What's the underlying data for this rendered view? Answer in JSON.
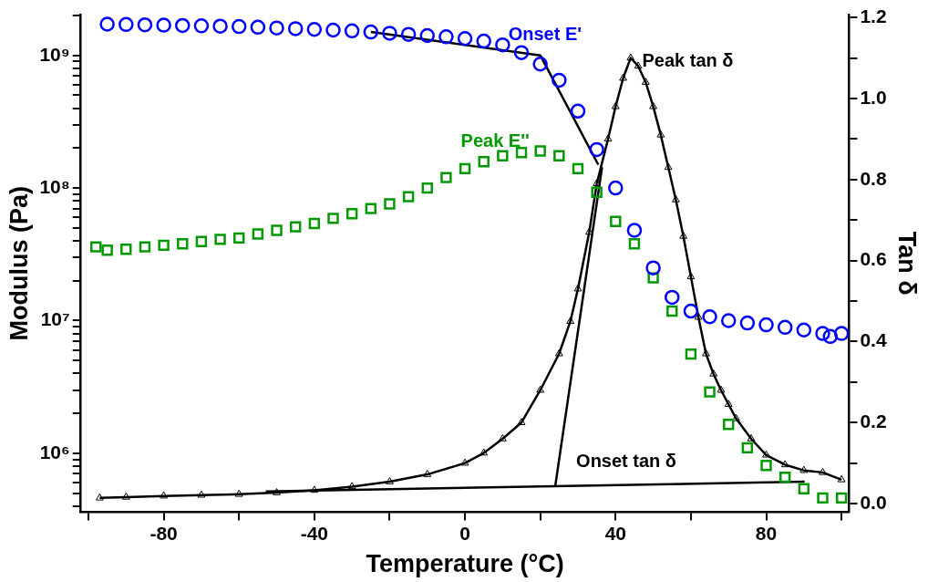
{
  "chart_data": {
    "type": "scatter",
    "xlabel": "Temperature (°C)",
    "ylabel": "Modulus (Pa)",
    "y2label": "Tan δ",
    "log": "y",
    "grid": false,
    "legend": false,
    "xlim": [
      -102,
      102
    ],
    "xticks": [
      {
        "value": -100,
        "label": null
      },
      -80,
      {
        "value": -60,
        "label": null
      },
      -40,
      {
        "value": -20,
        "label": null
      },
      0,
      {
        "value": 20,
        "label": null
      },
      40,
      {
        "value": 60,
        "label": null
      },
      80,
      {
        "value": 100,
        "label": null
      }
    ],
    "ylim": [
      360000,
      2030000000
    ],
    "yticks": [
      {
        "value": 400000,
        "label": null
      },
      {
        "value": 500000,
        "label": null
      },
      {
        "value": 600000,
        "label": null
      },
      {
        "value": 700000,
        "label": null
      },
      {
        "value": 800000,
        "label": null
      },
      {
        "value": 900000,
        "label": null
      },
      {
        "value": 1000000,
        "label": "10⁶"
      },
      {
        "value": 2000000,
        "label": null
      },
      {
        "value": 3000000,
        "label": null
      },
      {
        "value": 4000000,
        "label": null
      },
      {
        "value": 5000000,
        "label": null
      },
      {
        "value": 6000000,
        "label": null
      },
      {
        "value": 7000000,
        "label": null
      },
      {
        "value": 8000000,
        "label": null
      },
      {
        "value": 9000000,
        "label": null
      },
      {
        "value": 10000000,
        "label": "10⁷"
      },
      {
        "value": 20000000,
        "label": null
      },
      {
        "value": 30000000,
        "label": null
      },
      {
        "value": 40000000,
        "label": null
      },
      {
        "value": 50000000,
        "label": null
      },
      {
        "value": 60000000,
        "label": null
      },
      {
        "value": 70000000,
        "label": null
      },
      {
        "value": 80000000,
        "label": null
      },
      {
        "value": 90000000,
        "label": null
      },
      {
        "value": 100000000,
        "label": "10⁸"
      },
      {
        "value": 200000000,
        "label": null
      },
      {
        "value": 300000000,
        "label": null
      },
      {
        "value": 400000000,
        "label": null
      },
      {
        "value": 500000000,
        "label": null
      },
      {
        "value": 600000000,
        "label": null
      },
      {
        "value": 700000000,
        "label": null
      },
      {
        "value": 800000000,
        "label": null
      },
      {
        "value": 900000000,
        "label": null
      },
      {
        "value": 1000000000,
        "label": "10⁹"
      },
      {
        "value": 2000000000,
        "label": null
      }
    ],
    "y2lim": [
      -0.021,
      1.207
    ],
    "y2ticks": [
      "0.0",
      {
        "value": 0.1,
        "label": null
      },
      {
        "value": 0.2,
        "label": "0.2"
      },
      {
        "value": 0.3,
        "label": null
      },
      {
        "value": 0.4,
        "label": "0.4"
      },
      {
        "value": 0.5,
        "label": null
      },
      {
        "value": 0.6,
        "label": "0.6"
      },
      {
        "value": 0.7,
        "label": null
      },
      {
        "value": 0.8,
        "label": "0.8"
      },
      {
        "value": 0.9,
        "label": null
      },
      {
        "value": 1.0,
        "label": "1.0"
      },
      {
        "value": 1.1,
        "label": null
      },
      {
        "value": 1.2,
        "label": "1.2"
      }
    ],
    "series": [
      {
        "marker": "circle",
        "color": "#0000ff",
        "x": [
          -95,
          -90,
          -85,
          -80,
          -75,
          -70,
          -65,
          -60,
          -55,
          -50,
          -45,
          -40,
          -35,
          -30,
          -25,
          -20,
          -15,
          -10,
          -5,
          0,
          5,
          10,
          15,
          20,
          25,
          30,
          35,
          40,
          45,
          50,
          55,
          60,
          65,
          70,
          75,
          80,
          85,
          90,
          95,
          97,
          100
        ],
        "values": [
          1720000000,
          1710000000,
          1700000000,
          1690000000,
          1680000000,
          1670000000,
          1660000000,
          1650000000,
          1630000000,
          1610000000,
          1590000000,
          1570000000,
          1550000000,
          1530000000,
          1500000000,
          1470000000,
          1440000000,
          1410000000,
          1380000000,
          1340000000,
          1280000000,
          1200000000,
          1050000000,
          860000000,
          650000000,
          380000000,
          195000000,
          100000000,
          48000000,
          25000000,
          15000000,
          11800000,
          10700000,
          10000000,
          9600000,
          9300000,
          8900000,
          8500000,
          8000000,
          7600000,
          8000000
        ]
      },
      {
        "marker": "square",
        "color": "#009900",
        "x": [
          -98,
          -95,
          -90,
          -85,
          -80,
          -75,
          -70,
          -65,
          -60,
          -55,
          -50,
          -45,
          -40,
          -35,
          -30,
          -25,
          -20,
          -15,
          -10,
          -5,
          0,
          5,
          10,
          15,
          20,
          25,
          30,
          35,
          40,
          45,
          50,
          55,
          60,
          65,
          70,
          75,
          80,
          85,
          90,
          95,
          100
        ],
        "values": [
          36000000,
          34000000,
          34500000,
          36000000,
          37000000,
          38000000,
          39500000,
          41000000,
          42000000,
          45000000,
          48000000,
          51000000,
          54000000,
          59000000,
          64000000,
          70000000,
          76000000,
          86000000,
          100000000,
          120000000,
          140000000,
          158000000,
          175000000,
          185000000,
          190000000,
          175000000,
          140000000,
          93000000,
          56000000,
          38000000,
          21000000,
          11800000,
          5600000,
          2900000,
          1650000,
          1100000,
          810000,
          660000,
          540000,
          460000,
          460000
        ]
      },
      {
        "type": "line",
        "axis": "y2",
        "marker": "triangle",
        "color": "#000000",
        "x": [
          -97,
          -90,
          -80,
          -70,
          -60,
          -50,
          -40,
          -30,
          -20,
          -10,
          0,
          5,
          10,
          15,
          20,
          25,
          28,
          30,
          33,
          35,
          38,
          40,
          42,
          44,
          46,
          48,
          50,
          52,
          54,
          56,
          58,
          60,
          62,
          64,
          66,
          68,
          70,
          72,
          76,
          80,
          85,
          90,
          95,
          100
        ],
        "values": [
          0.014,
          0.016,
          0.019,
          0.021,
          0.023,
          0.027,
          0.033,
          0.042,
          0.054,
          0.072,
          0.1,
          0.125,
          0.16,
          0.2,
          0.28,
          0.37,
          0.45,
          0.53,
          0.67,
          0.79,
          0.9,
          0.98,
          1.05,
          1.1,
          1.08,
          1.04,
          0.98,
          0.91,
          0.83,
          0.75,
          0.66,
          0.56,
          0.46,
          0.37,
          0.32,
          0.28,
          0.245,
          0.21,
          0.16,
          0.12,
          0.096,
          0.082,
          0.077,
          0.059
        ]
      },
      {
        "type": "line",
        "marker": "none",
        "color": "#000000",
        "x": [
          -25,
          20,
          35.4
        ],
        "values": [
          1500000000,
          1000000000,
          150000000
        ]
      },
      {
        "type": "line",
        "axis": "y2",
        "marker": "none",
        "color": "#000000",
        "x": [
          -52.9,
          90.2
        ],
        "values": [
          0.03,
          0.054
        ]
      },
      {
        "type": "line",
        "axis": "y2",
        "marker": "none",
        "color": "#000000",
        "x": [
          24,
          36.4
        ],
        "values": [
          0.045,
          0.83
        ]
      }
    ],
    "annotations": [
      {
        "text": "Onset E'",
        "x": 20,
        "y": 1000000000
      },
      {
        "text": "Peak E''",
        "x": 20,
        "y": 190000000
      },
      "Peak tan δ",
      "Onset tan δ"
    ]
  }
}
